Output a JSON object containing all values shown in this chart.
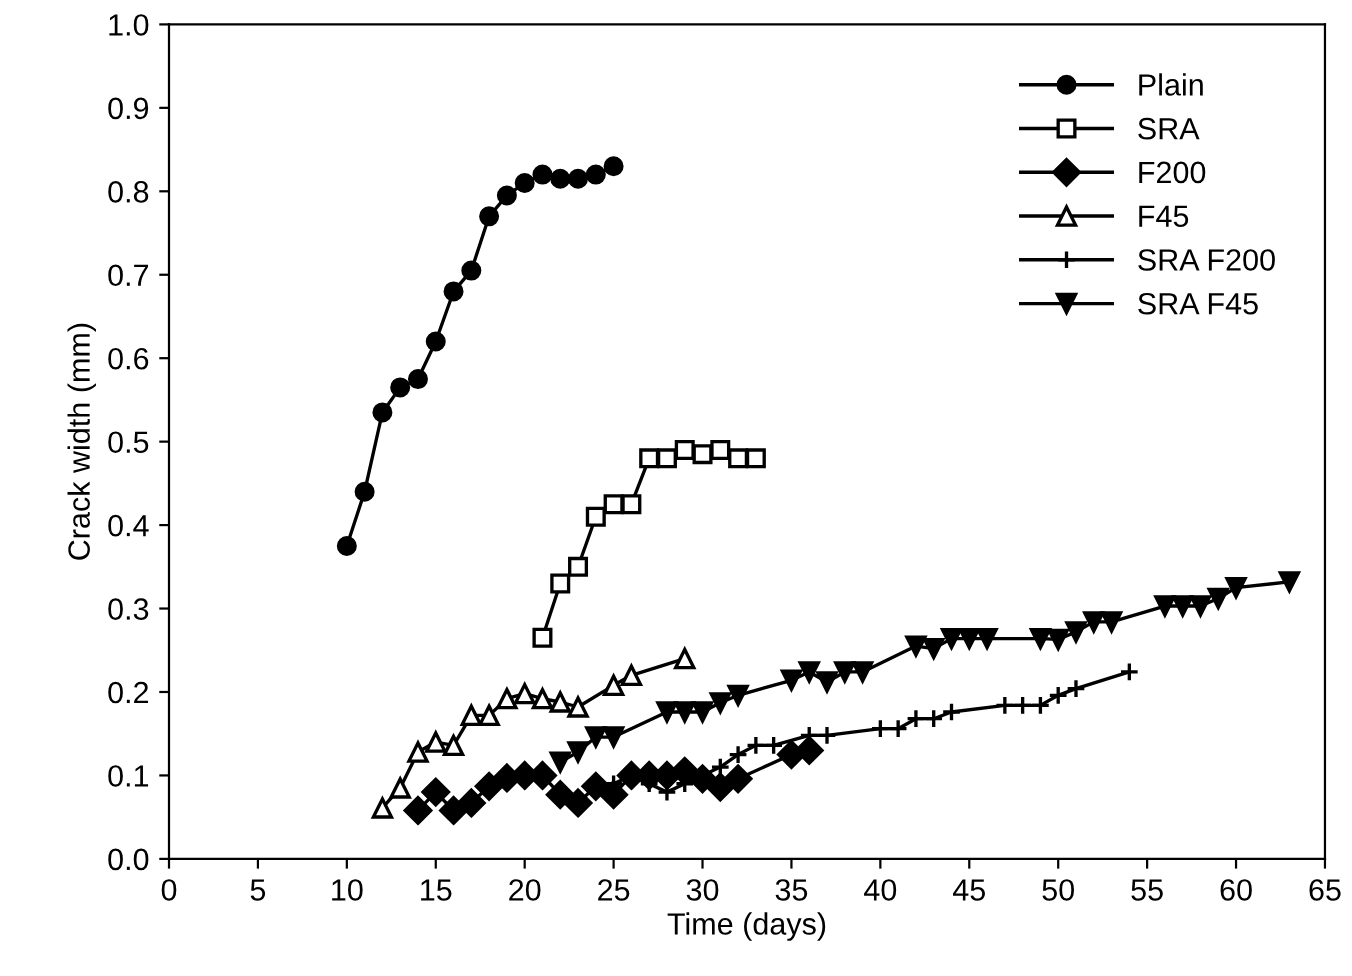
{
  "chart_data": {
    "type": "line",
    "xlabel": "Time (days)",
    "ylabel": "Crack width (mm)",
    "xlim": [
      0,
      65
    ],
    "xticks": [
      0,
      5,
      10,
      15,
      20,
      25,
      30,
      35,
      40,
      45,
      50,
      55,
      60,
      65
    ],
    "ylim": [
      0,
      1.0
    ],
    "yticks": [
      {
        "value": 0,
        "label": "0.0"
      },
      0.1,
      0.2,
      0.3,
      0.4,
      0.5,
      0.6,
      0.7,
      0.8,
      0.9,
      {
        "value": 1,
        "label": "1.0"
      }
    ],
    "grid": false,
    "legend": "top right",
    "line_style": "solid",
    "series": [
      {
        "name": "Plain",
        "color": "#000000",
        "marker": "circle",
        "x": [
          10,
          11,
          12,
          13,
          14,
          15,
          16,
          17,
          18,
          19,
          20,
          21,
          22,
          23,
          24,
          25
        ],
        "values": [
          0.375,
          0.44,
          0.535,
          0.565,
          0.575,
          0.62,
          0.68,
          0.705,
          0.77,
          0.795,
          0.81,
          0.82,
          0.815,
          0.815,
          0.82,
          0.83
        ]
      },
      {
        "name": "SRA",
        "color": "#000000",
        "marker": "square",
        "x": [
          21,
          22,
          23,
          24,
          25,
          26,
          27,
          28,
          29,
          30,
          31,
          32,
          33
        ],
        "values": [
          0.265,
          0.33,
          0.35,
          0.41,
          0.425,
          0.425,
          0.48,
          0.48,
          0.49,
          0.485,
          0.49,
          0.48,
          0.48
        ]
      },
      {
        "name": "F200",
        "color": "#000000",
        "marker": "diamond",
        "x": [
          14,
          15,
          16,
          17,
          18,
          19,
          20,
          21,
          22,
          23,
          24,
          25,
          26,
          27,
          28,
          29,
          30,
          31,
          32,
          35,
          36
        ],
        "values": [
          0.058,
          0.08,
          0.058,
          0.067,
          0.087,
          0.097,
          0.1,
          0.1,
          0.077,
          0.067,
          0.087,
          0.077,
          0.1,
          0.1,
          0.1,
          0.105,
          0.096,
          0.086,
          0.096,
          0.125,
          0.13
        ]
      },
      {
        "name": "F45",
        "color": "#000000",
        "marker": "triangle",
        "x": [
          12,
          13,
          14,
          15,
          16,
          17,
          18,
          19,
          20,
          21,
          22,
          23,
          25,
          26,
          29
        ],
        "values": [
          0.061,
          0.085,
          0.128,
          0.14,
          0.136,
          0.172,
          0.172,
          0.192,
          0.198,
          0.192,
          0.188,
          0.182,
          0.208,
          0.22,
          0.24
        ]
      },
      {
        "name": "SRA F200",
        "color": "#000000",
        "marker": "cross",
        "x": [
          25,
          26,
          27,
          28,
          29,
          30,
          31,
          32,
          33,
          34,
          36,
          37,
          40,
          41,
          42,
          43,
          44,
          47,
          48,
          49,
          50,
          51,
          54
        ],
        "values": [
          0.09,
          0.1,
          0.09,
          0.08,
          0.09,
          0.1,
          0.11,
          0.125,
          0.136,
          0.136,
          0.148,
          0.148,
          0.156,
          0.156,
          0.168,
          0.168,
          0.176,
          0.184,
          0.184,
          0.184,
          0.196,
          0.204,
          0.224
        ]
      },
      {
        "name": "SRA F45",
        "color": "#000000",
        "marker": "triangle_down",
        "x": [
          22,
          23,
          24,
          25,
          28,
          29,
          30,
          31,
          32,
          35,
          36,
          37,
          38,
          39,
          42,
          43,
          44,
          45,
          46,
          49,
          50,
          51,
          52,
          53,
          56,
          57,
          58,
          59,
          60,
          63
        ],
        "values": [
          0.116,
          0.128,
          0.146,
          0.146,
          0.176,
          0.176,
          0.176,
          0.187,
          0.196,
          0.214,
          0.224,
          0.212,
          0.224,
          0.224,
          0.255,
          0.252,
          0.264,
          0.264,
          0.264,
          0.264,
          0.263,
          0.272,
          0.284,
          0.284,
          0.303,
          0.303,
          0.303,
          0.312,
          0.325,
          0.332
        ]
      }
    ]
  }
}
